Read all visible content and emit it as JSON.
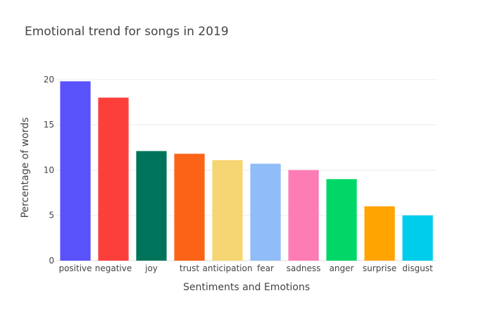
{
  "chart_data": {
    "type": "bar",
    "title": "Emotional trend for songs in 2019",
    "xlabel": "Sentiments and Emotions",
    "ylabel": "Percentage of words",
    "categories": [
      "positive",
      "negative",
      "joy",
      "trust",
      "anticipation",
      "fear",
      "sadness",
      "anger",
      "surprise",
      "disgust"
    ],
    "values": [
      19.8,
      18.0,
      12.1,
      11.8,
      11.1,
      10.7,
      10.0,
      9.0,
      6.0,
      5.0
    ],
    "colors": [
      "#5a52fb",
      "#fd3f3b",
      "#00745a",
      "#fb6416",
      "#f6d672",
      "#90bcf7",
      "#fe7cb5",
      "#00d766",
      "#ffa400",
      "#00ccec"
    ],
    "ylim": [
      0,
      21
    ],
    "yticks": [
      0,
      5,
      10,
      15,
      20
    ],
    "grid": true,
    "legend": "none"
  }
}
